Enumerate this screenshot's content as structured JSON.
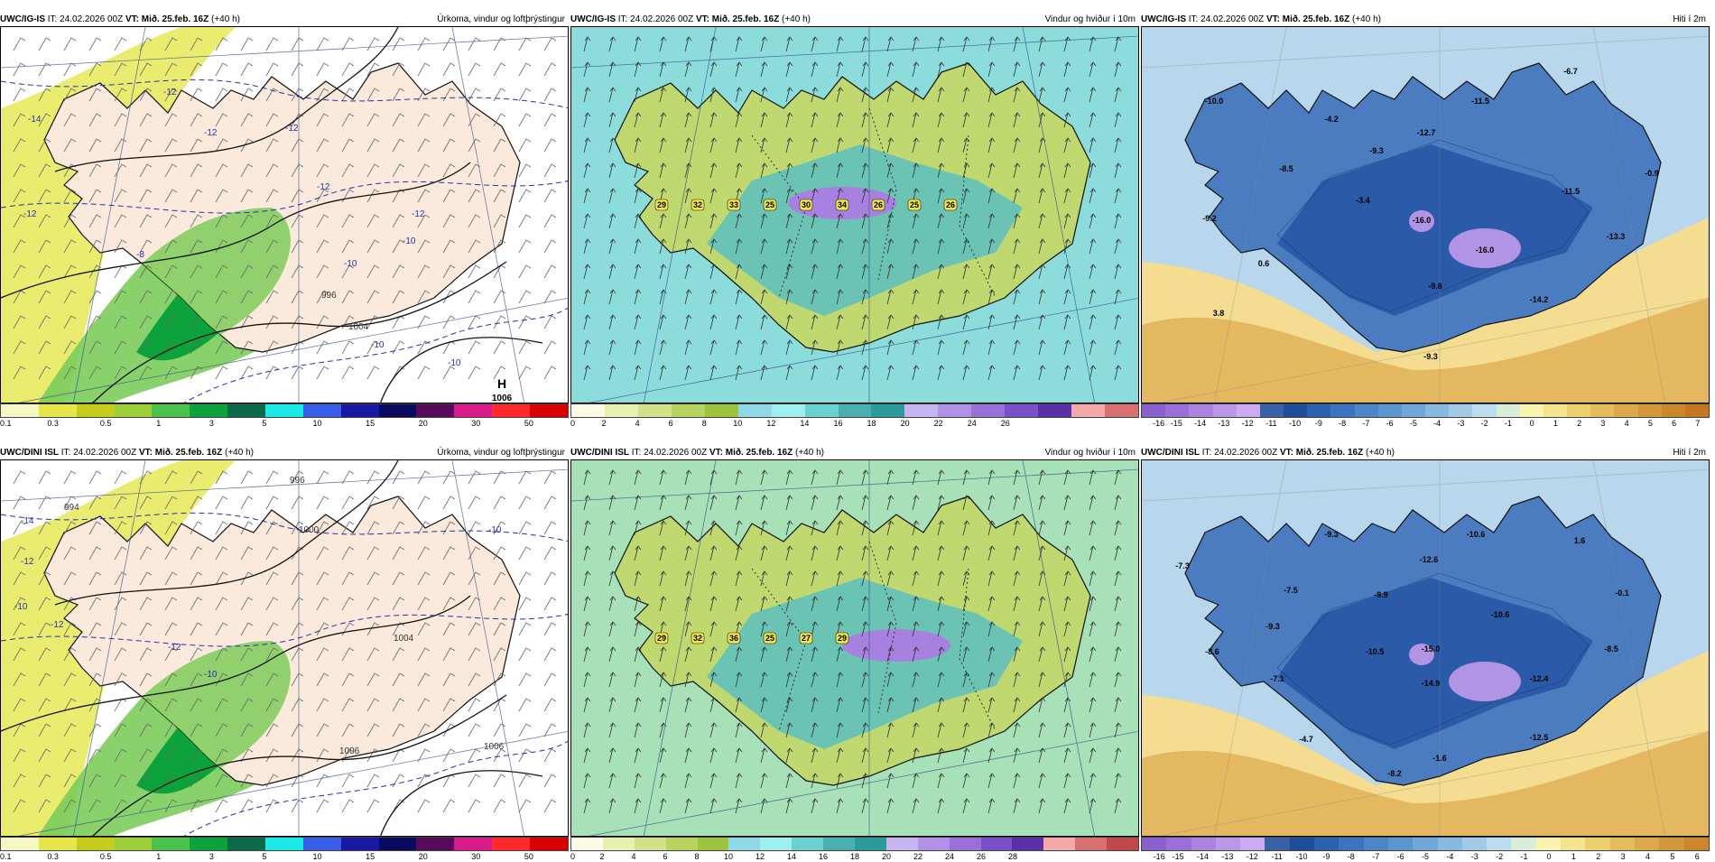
{
  "panels": [
    {
      "model": "UWC/IG-IS",
      "it": "IT: 24.02.2026 00Z",
      "vt_label": "VT:",
      "vt": "Mið. 25.feb. 16Z",
      "lead": "(+40 h)",
      "title": "Úrkoma, vindur og loftþrýstingur",
      "type": "precip",
      "scale": {
        "colors": [
          "#f7f7c4",
          "#e6e64c",
          "#c6cc1a",
          "#9ccf3a",
          "#4cc24c",
          "#0ca33c",
          "#0b6a4a",
          "#1ce8e8",
          "#3a5ee8",
          "#1818a0",
          "#0a0a60",
          "#5a0a5a",
          "#d81a8a",
          "#ff2a2a",
          "#d80000"
        ],
        "ticks": [
          "0.1",
          "0.3",
          "0.5",
          "1",
          "3",
          "5",
          "10",
          "15",
          "20",
          "30",
          "50"
        ]
      },
      "labels": [
        {
          "t": "-12",
          "c": "iso"
        },
        {
          "t": "-14",
          "c": "iso"
        },
        {
          "t": "-12",
          "c": "iso"
        },
        {
          "t": "-12",
          "c": "iso"
        },
        {
          "t": "-12",
          "c": "iso"
        },
        {
          "t": "-12",
          "c": "iso"
        },
        {
          "t": "-10",
          "c": "iso"
        },
        {
          "t": "-12",
          "c": "iso"
        },
        {
          "t": "-8",
          "c": "iso"
        },
        {
          "t": "-10",
          "c": "iso"
        },
        {
          "t": "-10",
          "c": "iso"
        },
        {
          "t": "-10",
          "c": "iso"
        },
        {
          "t": "996",
          "c": "isok"
        },
        {
          "t": "1004",
          "c": "isok"
        },
        {
          "t": "1006",
          "c": "isok"
        }
      ],
      "high": {
        "letter": "H",
        "value": "1006"
      }
    },
    {
      "model": "UWC/IG-IS",
      "it": "IT: 24.02.2026 00Z",
      "vt_label": "VT:",
      "vt": "Mið. 25.feb. 16Z",
      "lead": "(+40 h)",
      "title": "Vindur og hviður í 10m",
      "type": "wind",
      "scale": {
        "colors": [
          "#fafae6",
          "#e8f0b0",
          "#d2e28a",
          "#b8d460",
          "#9cc43c",
          "#8fd8e8",
          "#9ef0f0",
          "#6ad0d0",
          "#48b0b0",
          "#2a9a9a",
          "#c8b4f0",
          "#b090e8",
          "#9870d8",
          "#7a50c8",
          "#5a30a8",
          "#f4a8a8",
          "#d87070"
        ],
        "ticks": [
          "0",
          "2",
          "4",
          "6",
          "8",
          "10",
          "12",
          "14",
          "16",
          "18",
          "20",
          "22",
          "24",
          "26"
        ]
      },
      "gusts": [
        "29",
        "32",
        "33",
        "25",
        "30",
        "34",
        "26",
        "25",
        "26"
      ]
    },
    {
      "model": "UWC/IG-IS",
      "it": "IT: 24.02.2026 00Z",
      "vt_label": "VT:",
      "vt": "Mið. 25.feb. 16Z",
      "lead": "(+40 h)",
      "title": "Hiti í 2m",
      "type": "temp",
      "scale": {
        "colors": [
          "#8a60d0",
          "#9a70d8",
          "#aa84e0",
          "#ba98e8",
          "#cbacf0",
          "#3a60a8",
          "#1e4e98",
          "#2a62b0",
          "#3a74c0",
          "#4a86c8",
          "#5c96d0",
          "#70a6d8",
          "#86b8e0",
          "#a0cae8",
          "#bcdcf0",
          "#d8ecd8",
          "#f8f4b0",
          "#f4e490",
          "#ecd070",
          "#e4bc5c",
          "#dca84a",
          "#d4963a",
          "#cc862c",
          "#c47620"
        ],
        "ticks": [
          "-16",
          "-15",
          "-14",
          "-13",
          "-12",
          "-11",
          "-10",
          "-9",
          "-8",
          "-7",
          "-6",
          "-5",
          "-4",
          "-3",
          "-2",
          "-1",
          "0",
          "1",
          "2",
          "3",
          "4",
          "5",
          "6",
          "7"
        ]
      },
      "temps": [
        "-10.0",
        "-4.2",
        "-8.5",
        "-9.3",
        "-12.7",
        "-11.5",
        "-6.7",
        "-9.2",
        "-3.4",
        "-16.0",
        "-16.0",
        "-11.5",
        "-0.9",
        "-13.3",
        "0.6",
        "-9.8",
        "-14.2",
        "3.8",
        "-9.3"
      ]
    },
    {
      "model": "UWC/DINI ISL",
      "it": "IT: 24.02.2026 00Z",
      "vt_label": "VT:",
      "vt": "Mið. 25.feb. 16Z",
      "lead": "(+40 h)",
      "title": "Úrkoma, vindur og loftþrýstingur",
      "type": "precip",
      "scale": {
        "colors": [
          "#f7f7c4",
          "#e6e64c",
          "#c6cc1a",
          "#9ccf3a",
          "#4cc24c",
          "#0ca33c",
          "#0b6a4a",
          "#1ce8e8",
          "#3a5ee8",
          "#1818a0",
          "#0a0a60",
          "#5a0a5a",
          "#d81a8a",
          "#ff2a2a",
          "#d80000"
        ],
        "ticks": [
          "0.1",
          "0.3",
          "0.5",
          "1",
          "3",
          "5",
          "10",
          "15",
          "20",
          "30",
          "50"
        ]
      },
      "labels": [
        {
          "t": "996",
          "c": "isok"
        },
        {
          "t": "994",
          "c": "isok"
        },
        {
          "t": "-14",
          "c": "iso"
        },
        {
          "t": "-12",
          "c": "iso"
        },
        {
          "t": "-10",
          "c": "iso"
        },
        {
          "t": "-12",
          "c": "iso"
        },
        {
          "t": "-10",
          "c": "iso"
        },
        {
          "t": "-12",
          "c": "iso"
        },
        {
          "t": "-10",
          "c": "iso"
        },
        {
          "t": "1000",
          "c": "isok"
        },
        {
          "t": "1004",
          "c": "isok"
        },
        {
          "t": "1006",
          "c": "isok"
        },
        {
          "t": "1006",
          "c": "isok"
        }
      ]
    },
    {
      "model": "UWC/DINI ISL",
      "it": "IT: 24.02.2026 00Z",
      "vt_label": "VT:",
      "vt": "Mið. 25.feb. 16Z",
      "lead": "(+40 h)",
      "title": "Vindur og hviður í 10m",
      "type": "wind",
      "scale": {
        "colors": [
          "#fafae6",
          "#e8f0b0",
          "#d2e28a",
          "#b8d460",
          "#9cc43c",
          "#8fd8e8",
          "#9ef0f0",
          "#6ad0d0",
          "#48b0b0",
          "#2a9a9a",
          "#c8b4f0",
          "#b090e8",
          "#9870d8",
          "#7a50c8",
          "#5a30a8",
          "#f4a8a8",
          "#d87070",
          "#c04848"
        ],
        "ticks": [
          "0",
          "2",
          "4",
          "6",
          "8",
          "10",
          "12",
          "14",
          "16",
          "18",
          "20",
          "22",
          "24",
          "26",
          "28"
        ]
      },
      "gusts": [
        "29",
        "32",
        "36",
        "25",
        "27",
        "29"
      ]
    },
    {
      "model": "UWC/DINI ISL",
      "it": "IT: 24.02.2026 00Z",
      "vt_label": "VT:",
      "vt": "Mið. 25.feb. 16Z",
      "lead": "(+40 h)",
      "title": "Hiti í 2m",
      "type": "temp",
      "scale": {
        "colors": [
          "#8a60d0",
          "#9a70d8",
          "#aa84e0",
          "#ba98e8",
          "#cbacf0",
          "#3a60a8",
          "#1e4e98",
          "#2a62b0",
          "#3a74c0",
          "#4a86c8",
          "#5c96d0",
          "#70a6d8",
          "#86b8e0",
          "#a0cae8",
          "#bcdcf0",
          "#d8ecd8",
          "#f8f4b0",
          "#f4e490",
          "#ecd070",
          "#e4bc5c",
          "#dca84a",
          "#d4963a",
          "#cc862c"
        ],
        "ticks": [
          "-16",
          "-15",
          "-14",
          "-13",
          "-12",
          "-11",
          "-10",
          "-9",
          "-8",
          "-7",
          "-6",
          "-5",
          "-4",
          "-3",
          "-2",
          "-1",
          "0",
          "1",
          "2",
          "3",
          "4",
          "5",
          "6"
        ]
      },
      "temps": [
        "-9.3",
        "-10.6",
        "-12.6",
        "1.6",
        "-7.3",
        "-7.5",
        "-9.9",
        "-0.1",
        "-10.6",
        "-9.3",
        "-8.6",
        "-10.5",
        "-15.0",
        "-8.5",
        "-7.1",
        "-14.9",
        "-12.4",
        "-12.5",
        "-4.7",
        "-1.6",
        "-8.2"
      ]
    }
  ]
}
